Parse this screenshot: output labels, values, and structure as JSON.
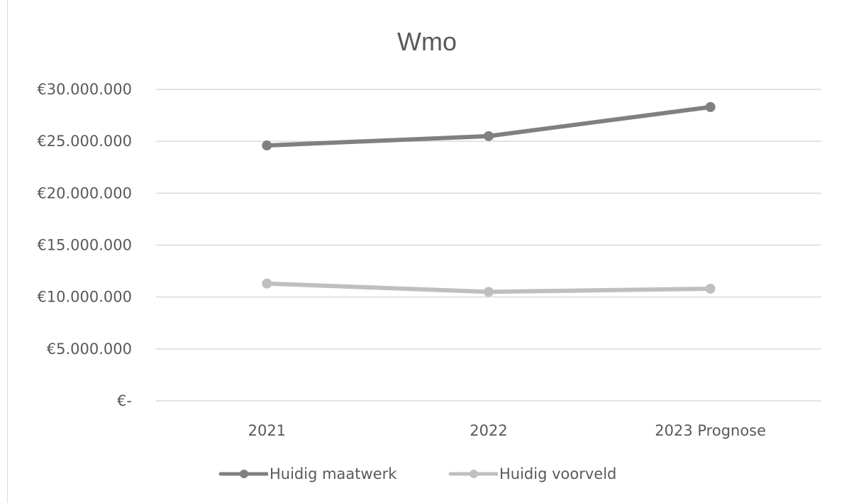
{
  "chart_data": {
    "type": "line",
    "title": "Wmo",
    "categories": [
      "2021",
      "2022",
      "2023 Prognose"
    ],
    "series": [
      {
        "name": "Huidig maatwerk",
        "values": [
          24600000,
          25500000,
          28300000
        ],
        "color": "#808080"
      },
      {
        "name": "Huidig voorveld",
        "values": [
          11300000,
          10500000,
          10800000
        ],
        "color": "#bfbfbf"
      }
    ],
    "ylim": [
      0,
      30000000
    ],
    "yticks": [
      {
        "value": 0,
        "label": "€-"
      },
      {
        "value": 5000000,
        "label": "€5.000.000"
      },
      {
        "value": 10000000,
        "label": "€10.000.000"
      },
      {
        "value": 15000000,
        "label": "€15.000.000"
      },
      {
        "value": 20000000,
        "label": "€20.000.000"
      },
      {
        "value": 25000000,
        "label": "€25.000.000"
      },
      {
        "value": 30000000,
        "label": "€30.000.000"
      }
    ],
    "grid": true,
    "legend_position": "bottom",
    "gridline_color": "#d9d9d9",
    "text_color": "#595959"
  }
}
